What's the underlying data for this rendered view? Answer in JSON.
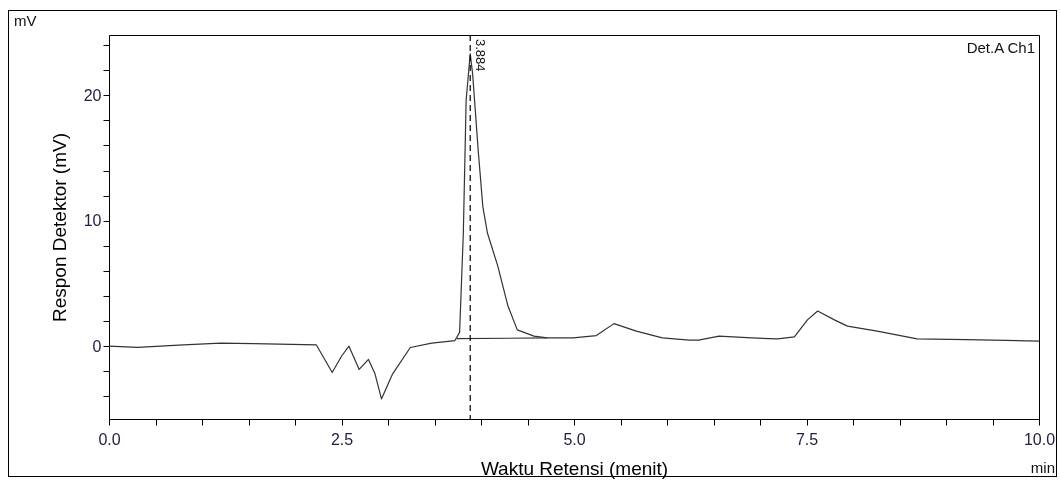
{
  "chart_data": {
    "type": "line",
    "xlabel": "Waktu Retensi (menit)",
    "ylabel": "Respon Detektor (mV)",
    "annotations": [
      "mV",
      "Det.A Ch1",
      "min"
    ],
    "xlim": [
      0,
      10
    ],
    "ylim": [
      -5.8,
      24.8
    ],
    "xticks": [
      {
        "value": 0,
        "label": "0.0"
      },
      {
        "value": 0.5,
        "label": null
      },
      {
        "value": 1,
        "label": null
      },
      {
        "value": 1.5,
        "label": null
      },
      {
        "value": 2,
        "label": null
      },
      2.5,
      {
        "value": 3,
        "label": null
      },
      {
        "value": 3.5,
        "label": null
      },
      {
        "value": 4,
        "label": null
      },
      {
        "value": 4.5,
        "label": null
      },
      {
        "value": 5,
        "label": "5.0"
      },
      {
        "value": 5.5,
        "label": null
      },
      {
        "value": 6,
        "label": null
      },
      {
        "value": 6.5,
        "label": null
      },
      {
        "value": 7,
        "label": null
      },
      7.5,
      {
        "value": 8,
        "label": null
      },
      {
        "value": 8.5,
        "label": null
      },
      {
        "value": 9,
        "label": null
      },
      {
        "value": 9.5,
        "label": null
      },
      {
        "value": 10,
        "label": "10.0"
      }
    ],
    "yticks": [
      {
        "value": -4,
        "label": null
      },
      {
        "value": -2,
        "label": null
      },
      0,
      {
        "value": 2,
        "label": null
      },
      {
        "value": 4,
        "label": null
      },
      {
        "value": 6,
        "label": null
      },
      {
        "value": 8,
        "label": null
      },
      10,
      {
        "value": 12,
        "label": null
      },
      {
        "value": 14,
        "label": null
      },
      {
        "value": 16,
        "label": null
      },
      {
        "value": 18,
        "label": null
      },
      20,
      {
        "value": 22,
        "label": null
      },
      {
        "value": 24,
        "label": null
      }
    ],
    "series": [
      {
        "color": "#333333",
        "x": [
          0,
          0.31,
          0.8,
          1.2,
          1.55,
          2.23,
          2.3,
          2.4,
          2.5,
          2.58,
          2.69,
          2.79,
          2.86,
          2.93,
          3.05,
          3.24,
          3.47,
          3.72,
          3.77,
          3.81,
          3.84,
          3.884,
          3.91,
          3.97,
          4.02,
          4.07,
          4.18,
          4.29,
          4.39,
          4.57,
          4.71,
          4.99,
          5.24,
          5.43,
          5.67,
          5.95,
          6.24,
          6.34,
          6.56,
          6.91,
          7.19,
          7.37,
          7.51,
          7.62,
          7.8,
          7.94,
          8.26,
          8.69,
          9.22,
          10
        ],
        "values": [
          0,
          -0.1,
          0.1,
          0.25,
          0.2,
          0.1,
          -0.8,
          -2.1,
          -0.8,
          0,
          -1.85,
          -1.05,
          -2.2,
          -4.2,
          -2.2,
          -0.1,
          0.25,
          0.45,
          1.1,
          9,
          19.6,
          23.3,
          21.7,
          15.6,
          11.1,
          9,
          6.4,
          3.2,
          1.3,
          0.8,
          0.66,
          0.66,
          0.85,
          1.8,
          1.2,
          0.66,
          0.48,
          0.48,
          0.8,
          0.66,
          0.58,
          0.74,
          2.1,
          2.8,
          2.1,
          1.6,
          1.2,
          0.58,
          0.53,
          0.4
        ]
      },
      {
        "color": "#333333",
        "x": [
          3.74,
          4.71
        ],
        "values": [
          0.6,
          0.66
        ]
      }
    ],
    "ref_lines": [
      {
        "axis": "x",
        "value": 3.884,
        "label": "3.884",
        "line_style": "dashed",
        "color": "#000000"
      }
    ]
  }
}
